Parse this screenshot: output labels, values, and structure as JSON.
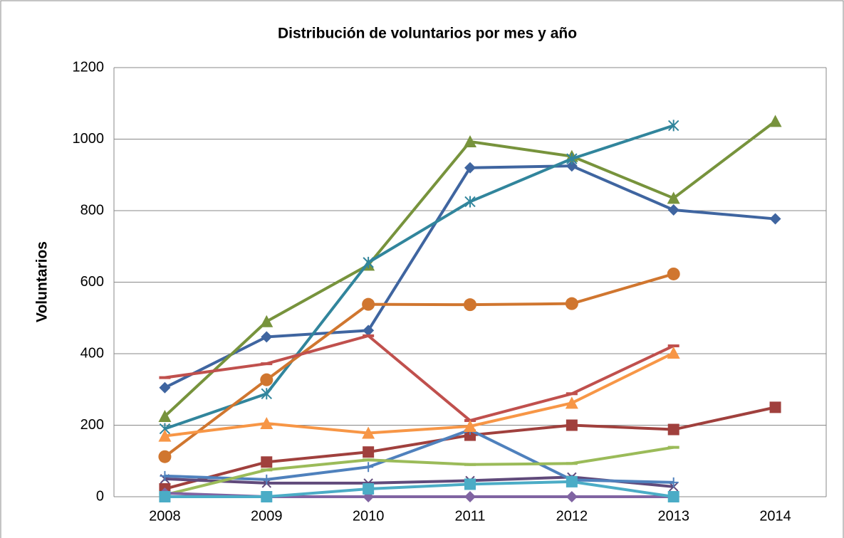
{
  "chart_data": {
    "type": "line",
    "title": "Distribución de voluntarios por mes y año",
    "y_label": "Voluntarios",
    "categories": [
      "2008",
      "2009",
      "2010",
      "2011",
      "2012",
      "2013",
      "2014"
    ],
    "ylim": [
      0,
      1200
    ],
    "yticks": [
      0,
      200,
      400,
      600,
      800,
      1000,
      1200
    ],
    "grid": true,
    "series": [
      {
        "color": "#3f65a0",
        "marker": "diamond",
        "values": [
          305,
          447,
          465,
          920,
          925,
          802,
          777
        ]
      },
      {
        "color": "#a0403d",
        "marker": "square",
        "values": [
          22,
          97,
          125,
          172,
          200,
          188,
          250
        ]
      },
      {
        "color": "#77933c",
        "marker": "triangle",
        "values": [
          225,
          490,
          648,
          993,
          952,
          835,
          1050
        ]
      },
      {
        "color": "#604a7b",
        "marker": "x",
        "values": [
          50,
          38,
          38,
          45,
          55,
          28,
          null
        ]
      },
      {
        "color": "#31859c",
        "marker": "star",
        "values": [
          190,
          288,
          655,
          825,
          945,
          1038,
          null
        ]
      },
      {
        "color": "#d0762f",
        "marker": "circle",
        "values": [
          112,
          327,
          538,
          537,
          540,
          623,
          null
        ]
      },
      {
        "color": "#4f81bd",
        "marker": "plus",
        "values": [
          58,
          48,
          83,
          187,
          47,
          40,
          null
        ]
      },
      {
        "color": "#c0504d",
        "marker": "dash",
        "values": [
          333,
          372,
          450,
          213,
          288,
          422,
          null
        ]
      },
      {
        "color": "#9bbb59",
        "marker": "dash",
        "values": [
          5,
          75,
          103,
          90,
          93,
          138,
          null
        ]
      },
      {
        "color": "#f79646",
        "marker": "triangle",
        "values": [
          170,
          205,
          178,
          197,
          262,
          402,
          null
        ]
      },
      {
        "color": "#8064a2",
        "marker": "diamond",
        "values": [
          10,
          0,
          0,
          0,
          0,
          0,
          null
        ]
      },
      {
        "color": "#4bacc6",
        "marker": "square",
        "values": [
          0,
          0,
          22,
          35,
          42,
          0,
          null
        ]
      }
    ]
  }
}
